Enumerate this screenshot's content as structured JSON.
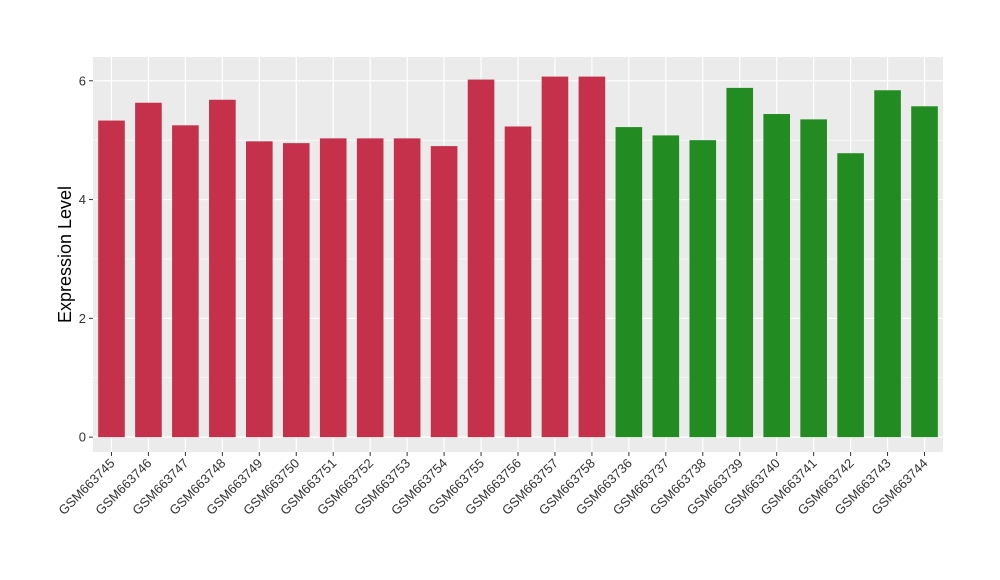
{
  "chart_data": {
    "type": "bar",
    "title": "",
    "xlabel": "",
    "ylabel": "Expression Level",
    "ylim": [
      -0.25,
      6.4
    ],
    "yticks": [
      0,
      2,
      4,
      6
    ],
    "grid": true,
    "legend": "none",
    "colors": {
      "group_a": "#C5304A",
      "group_b": "#228B22",
      "panel": "#EBEBEB",
      "grid": "#FFFFFF"
    },
    "categories": [
      "GSM663745",
      "GSM663746",
      "GSM663747",
      "GSM663748",
      "GSM663749",
      "GSM663750",
      "GSM663751",
      "GSM663752",
      "GSM663753",
      "GSM663754",
      "GSM663755",
      "GSM663756",
      "GSM663757",
      "GSM663758",
      "GSM663736",
      "GSM663737",
      "GSM663738",
      "GSM663739",
      "GSM663740",
      "GSM663741",
      "GSM663742",
      "GSM663743",
      "GSM663744"
    ],
    "values": [
      5.33,
      5.63,
      5.25,
      5.68,
      4.98,
      4.95,
      5.03,
      5.03,
      5.03,
      4.9,
      6.02,
      5.23,
      6.07,
      6.07,
      5.22,
      5.08,
      5.0,
      5.88,
      5.44,
      5.35,
      4.78,
      5.84,
      5.57
    ],
    "bar_groups": [
      "a",
      "a",
      "a",
      "a",
      "a",
      "a",
      "a",
      "a",
      "a",
      "a",
      "a",
      "a",
      "a",
      "a",
      "b",
      "b",
      "b",
      "b",
      "b",
      "b",
      "b",
      "b",
      "b"
    ]
  }
}
